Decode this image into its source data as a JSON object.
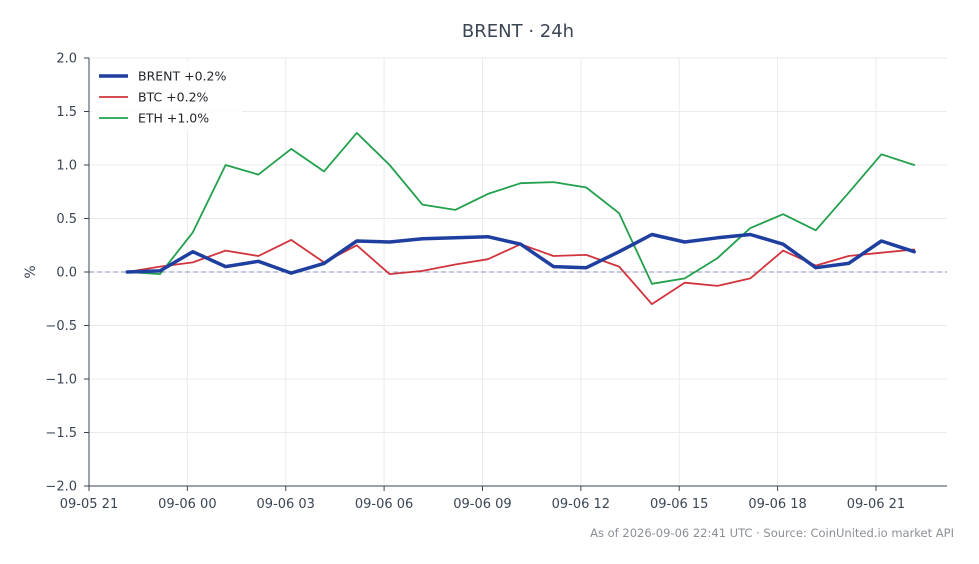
{
  "chart_data": {
    "type": "line",
    "title": "BRENT · 24h",
    "xlabel": "",
    "ylabel": "%",
    "ylim": [
      -2.0,
      2.0
    ],
    "yticks": [
      -2.0,
      -1.5,
      -1.0,
      -0.5,
      0.0,
      0.5,
      1.0,
      1.5,
      2.0
    ],
    "ytick_labels": [
      "−2.0",
      "−1.5",
      "−1.0",
      "−0.5",
      "0.0",
      "0.5",
      "1.0",
      "1.5",
      "2.0"
    ],
    "xlim": [
      "09-05 21:00",
      "09-06 23:10"
    ],
    "xticks": [
      "09-05 21",
      "09-06 00",
      "09-06 03",
      "09-06 06",
      "09-06 09",
      "09-06 12",
      "09-06 15",
      "09-06 18",
      "09-06 21"
    ],
    "x": [
      "09-05 22:10",
      "09-05 23:10",
      "09-06 00:10",
      "09-06 01:10",
      "09-06 02:10",
      "09-06 03:10",
      "09-06 04:10",
      "09-06 05:10",
      "09-06 06:10",
      "09-06 07:10",
      "09-06 08:10",
      "09-06 09:10",
      "09-06 10:10",
      "09-06 11:10",
      "09-06 12:10",
      "09-06 13:10",
      "09-06 14:10",
      "09-06 15:10",
      "09-06 16:10",
      "09-06 17:10",
      "09-06 18:10",
      "09-06 19:10",
      "09-06 20:10",
      "09-06 21:10",
      "09-06 22:10"
    ],
    "series": [
      {
        "name": "BRENT +0.2%",
        "color": "#1f3fa0",
        "width": 3.5,
        "values": [
          0.0,
          0.01,
          0.19,
          0.05,
          0.1,
          -0.01,
          0.08,
          0.29,
          0.28,
          0.31,
          0.32,
          0.33,
          0.26,
          0.05,
          0.04,
          0.19,
          0.35,
          0.28,
          0.32,
          0.35,
          0.26,
          0.04,
          0.08,
          0.29,
          0.19
        ]
      },
      {
        "name": "BTC +0.2%",
        "color": "#d1343c",
        "width": 1.8,
        "values": [
          0.0,
          0.05,
          0.09,
          0.2,
          0.15,
          0.3,
          0.09,
          0.25,
          -0.02,
          0.01,
          0.07,
          0.12,
          0.26,
          0.15,
          0.16,
          0.05,
          -0.3,
          -0.1,
          -0.13,
          -0.06,
          0.2,
          0.06,
          0.15,
          0.18,
          0.21
        ]
      },
      {
        "name": "ETH +1.0%",
        "color": "#22a04b",
        "width": 1.8,
        "values": [
          0.0,
          -0.02,
          0.37,
          1.0,
          0.91,
          1.15,
          0.94,
          1.3,
          1.0,
          0.63,
          0.58,
          0.73,
          0.83,
          0.84,
          0.79,
          0.55,
          -0.11,
          -0.06,
          0.13,
          0.41,
          0.54,
          0.39,
          0.74,
          1.1,
          1.0
        ]
      }
    ],
    "reference_line": 0.0,
    "grid": true,
    "legend_position": "top-left",
    "footer": "As of 2026-09-06 22:41 UTC · Source: CoinUnited.io market API"
  }
}
